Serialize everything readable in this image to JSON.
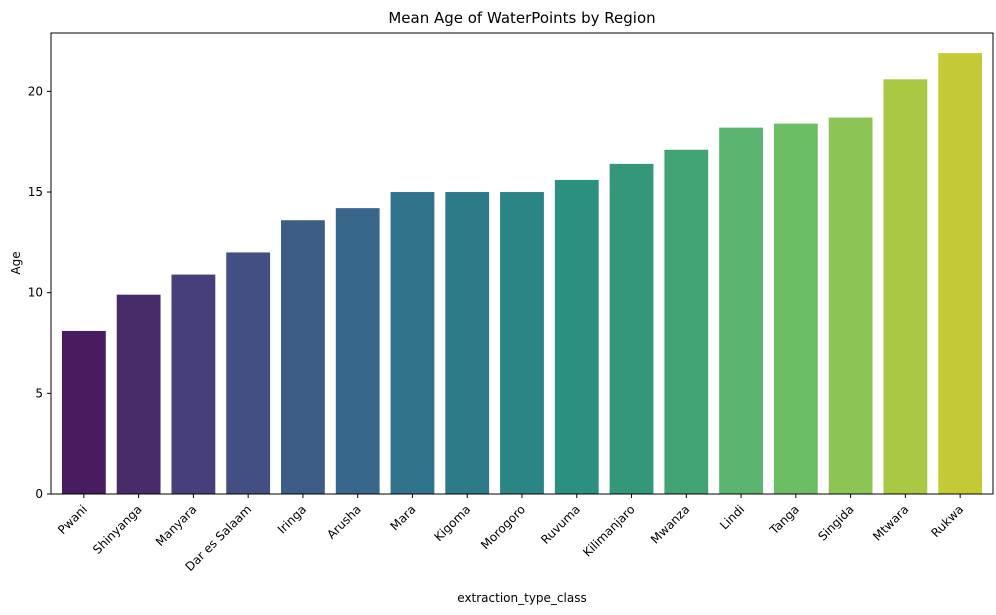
{
  "chart_data": {
    "type": "bar",
    "title": "Mean Age of WaterPoints by Region",
    "xlabel": "extraction_type_class",
    "ylabel": "Age",
    "categories": [
      "Pwani",
      "Shinyanga",
      "Manyara",
      "Dar es Salaam",
      "Iringa",
      "Arusha",
      "Mara",
      "Kigoma",
      "Morogoro",
      "Ruvuma",
      "Kilimanjaro",
      "Mwanza",
      "Lindi",
      "Tanga",
      "Singida",
      "Mtwara",
      "Rukwa"
    ],
    "values": [
      8.1,
      9.9,
      10.9,
      12.0,
      13.6,
      14.2,
      15.0,
      15.0,
      15.0,
      15.6,
      16.4,
      17.1,
      18.2,
      18.4,
      18.7,
      20.6,
      21.9
    ],
    "colors": [
      "#481c5e",
      "#482c6a",
      "#473f7c",
      "#434f82",
      "#3e5d86",
      "#38678c",
      "#31738b",
      "#2d7a88",
      "#2b8584",
      "#2b9080",
      "#349779",
      "#43a473",
      "#5bb571",
      "#6bbe63",
      "#8dc456",
      "#a9c844",
      "#c3ca35"
    ],
    "yticks": [
      0,
      5,
      10,
      15,
      20
    ],
    "ylim": [
      0,
      22.9
    ],
    "grid": false,
    "legend": "none"
  }
}
